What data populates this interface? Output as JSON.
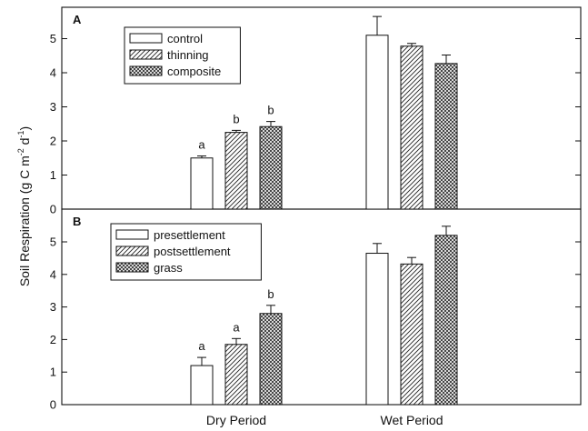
{
  "chart_data": [
    {
      "type": "bar",
      "panel": "A",
      "categories": [
        "Dry Period",
        "Wet Period"
      ],
      "ylabel": "Soil Respiration (g C m-2 d-1)",
      "ylim": [
        0,
        6
      ],
      "yticks": [
        "0",
        "1",
        "2",
        "3",
        "4",
        "5"
      ],
      "legend_position": "top-left",
      "series": [
        {
          "name": "control",
          "pattern": "open",
          "values": [
            1.5,
            5.1
          ],
          "errors": [
            0.06,
            0.55
          ],
          "letters": [
            "a",
            ""
          ]
        },
        {
          "name": "thinning",
          "pattern": "hatch",
          "values": [
            2.25,
            4.78
          ],
          "errors": [
            0.06,
            0.08
          ],
          "letters": [
            "b",
            ""
          ]
        },
        {
          "name": "composite",
          "pattern": "crosshatch",
          "values": [
            2.42,
            4.27
          ],
          "errors": [
            0.15,
            0.25
          ],
          "letters": [
            "b",
            ""
          ]
        }
      ]
    },
    {
      "type": "bar",
      "panel": "B",
      "categories": [
        "Dry Period",
        "Wet Period"
      ],
      "ylabel": "Soil Respiration (g C m-2 d-1)",
      "ylim": [
        0,
        6
      ],
      "yticks": [
        "0",
        "1",
        "2",
        "3",
        "4",
        "5"
      ],
      "legend_position": "top-left",
      "series": [
        {
          "name": "presettlement",
          "pattern": "open",
          "values": [
            1.2,
            4.65
          ],
          "errors": [
            0.25,
            0.3
          ],
          "letters": [
            "a",
            ""
          ]
        },
        {
          "name": "postsettlement",
          "pattern": "hatch",
          "values": [
            1.85,
            4.32
          ],
          "errors": [
            0.18,
            0.2
          ],
          "letters": [
            "a",
            ""
          ]
        },
        {
          "name": "grass",
          "pattern": "crosshatch",
          "values": [
            2.8,
            5.2
          ],
          "errors": [
            0.25,
            0.28
          ],
          "letters": [
            "b",
            ""
          ]
        }
      ]
    }
  ],
  "labels": {
    "ylabel_main": "Soil Respiration (g C m",
    "ylabel_sup1": "-2",
    "ylabel_mid": " d",
    "ylabel_sup2": "-1",
    "ylabel_end": ")",
    "panel_a": "A",
    "panel_b": "B",
    "x_cat_1": "Dry Period",
    "x_cat_2": "Wet Period"
  }
}
